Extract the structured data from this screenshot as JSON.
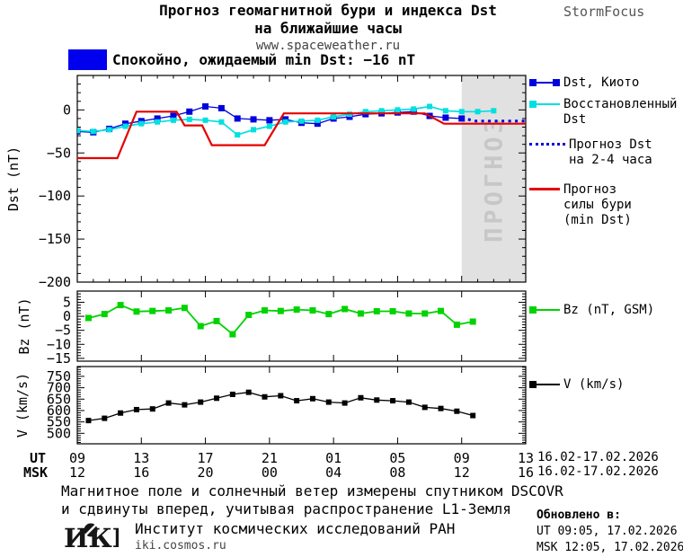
{
  "header": {
    "title_line1": "Прогноз геомагнитной бури и индекса Dst",
    "title_line2": "на ближайшие часы",
    "url": "www.spaceweather.ru",
    "brand": "StormFocus"
  },
  "status": {
    "text": "Спокойно, ожидаемый min Dst: −16 nT",
    "box_color": "#0000ee"
  },
  "chart_data": [
    {
      "id": "dst",
      "type": "line",
      "ylabel": "Dst (nT)",
      "ylim": [
        -200,
        40
      ],
      "yticks": [
        0,
        -50,
        -100,
        -150,
        -200
      ],
      "xlim_hours": [
        0,
        28
      ],
      "x_major_every": 4,
      "grid": false,
      "forecast_band": {
        "from_hour": 24,
        "to_hour": 28,
        "label": "ПРОГНОЗ",
        "fill": "#e1e1e1",
        "text_color": "#c7c7c7"
      },
      "series": [
        {
          "id": "dst_kyoto",
          "name": "Dst, Киото",
          "color": "#0000dd",
          "marker": "square",
          "style": "solid",
          "start_hour": 0,
          "step": 1,
          "values": [
            -25,
            -26,
            -22,
            -16,
            -13,
            -10,
            -7,
            -2,
            4,
            2,
            -10,
            -11,
            -12,
            -11,
            -15,
            -16,
            -10,
            -8,
            -5,
            -4,
            -3,
            -2,
            -7,
            -9,
            -10
          ]
        },
        {
          "id": "dst_restored",
          "name": "Восстановленный Dst",
          "color": "#00e0e0",
          "marker": "square",
          "style": "solid",
          "start_hour": 0,
          "step": 1,
          "values": [
            -24,
            -25,
            -23,
            -19,
            -16,
            -14,
            -12,
            -11,
            -12,
            -14,
            -29,
            -23,
            -19,
            -14,
            -13,
            -12,
            -8,
            -5,
            -2,
            -1,
            0,
            1,
            4,
            -1,
            -2,
            -2,
            -1
          ]
        },
        {
          "id": "dst_forecast",
          "name": "Прогноз Dst на 2-4 часа",
          "color": "#0000dd",
          "marker": "none",
          "style": "dotted",
          "points": [
            [
              24.4,
              -11
            ],
            [
              24.9,
              -13
            ],
            [
              28,
              -13
            ]
          ]
        },
        {
          "id": "storm_forecast",
          "name": "Прогноз силы бури (min Dst)",
          "color": "#e60000",
          "marker": "none",
          "style": "solid",
          "points": [
            [
              0,
              -56
            ],
            [
              2.5,
              -56
            ],
            [
              3.7,
              -2
            ],
            [
              6.2,
              -2
            ],
            [
              6.7,
              -18
            ],
            [
              7.8,
              -18
            ],
            [
              8.4,
              -41
            ],
            [
              11.7,
              -41
            ],
            [
              12.9,
              -4
            ],
            [
              21.7,
              -4
            ],
            [
              22.9,
              -16
            ],
            [
              28,
              -16
            ]
          ]
        }
      ]
    },
    {
      "id": "bz",
      "type": "line",
      "ylabel": "Bz (nT)",
      "ylim": [
        -16,
        9
      ],
      "yticks": [
        5,
        0,
        -5,
        -10,
        -15
      ],
      "xlim_hours": [
        0,
        28
      ],
      "x_major_every": 4,
      "grid": false,
      "series": [
        {
          "id": "bz",
          "name": "Bz (nT, GSM)",
          "color": "#00d300",
          "marker": "square",
          "style": "solid",
          "start_hour": 0.7,
          "step": 1,
          "values": [
            -0.6,
            0.8,
            4.0,
            1.7,
            1.9,
            2.1,
            3.0,
            -3.5,
            -1.7,
            -6.4,
            0.5,
            2.1,
            1.9,
            2.4,
            2.1,
            0.8,
            2.6,
            1.0,
            1.8,
            1.8,
            1.0,
            1.0,
            1.9,
            -3.0,
            -1.9
          ]
        }
      ]
    },
    {
      "id": "v",
      "type": "line",
      "ylabel": "V (km/s)",
      "ylim": [
        454,
        793
      ],
      "yticks": [
        750,
        700,
        650,
        600,
        550,
        500
      ],
      "xlim_hours": [
        0,
        28
      ],
      "x_major_every": 4,
      "grid": false,
      "series": [
        {
          "id": "v",
          "name": "V (km/s)",
          "color": "#000000",
          "marker": "square",
          "style": "solid",
          "start_hour": 0.7,
          "step": 1,
          "values": [
            556,
            566,
            589,
            604,
            607,
            633,
            625,
            637,
            654,
            671,
            680,
            660,
            665,
            643,
            652,
            637,
            633,
            656,
            646,
            643,
            637,
            614,
            609,
            597,
            578
          ]
        }
      ]
    }
  ],
  "legends": {
    "main": [
      {
        "label": "Dst, Киото"
      },
      {
        "label": "Восстановленный\nDst"
      },
      {
        "label": "Прогноз Dst\nна 2-4 часа"
      },
      {
        "label": "Прогноз\nсилы бури\n(min Dst)"
      }
    ],
    "bz": {
      "label": "Bz (nT, GSM)"
    },
    "v": {
      "label": "V (km/s)"
    }
  },
  "xaxis": {
    "ut_label": "UT",
    "msk_label": "MSK",
    "ut_hours": [
      "09",
      "13",
      "17",
      "21",
      "01",
      "05",
      "09",
      "13"
    ],
    "msk_hours": [
      "12",
      "16",
      "20",
      "00",
      "04",
      "08",
      "12",
      "16"
    ],
    "ut_daterange": "16.02-17.02.2026",
    "msk_daterange": "16.02-17.02.2026"
  },
  "footer": {
    "note_line1": "Магнитное поле и солнечный ветер измерены спутником DSCOVR",
    "note_line2": "и сдвинуты вперед, учитывая распространение L1-Земля",
    "logo_text": "ИКИ",
    "institute": "Институт космических исследований РАН",
    "institute_url": "iki.cosmos.ru",
    "updated_label": "Обновлено в:",
    "updated_ut": "UT  09:05, 17.02.2026",
    "updated_msk": "MSK 12:05, 17.02.2026"
  }
}
